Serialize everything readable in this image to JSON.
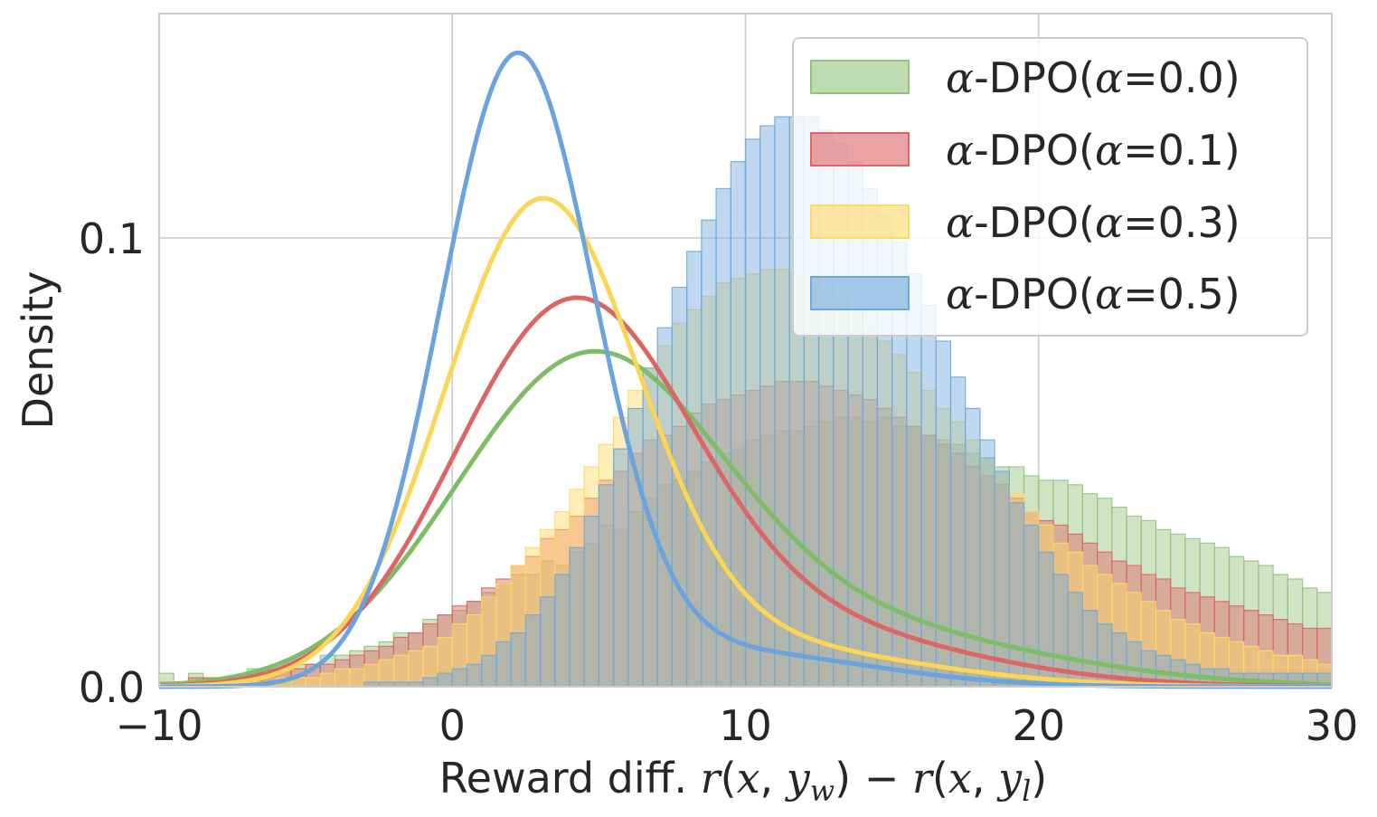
{
  "chart_data": {
    "type": "histogram-kde",
    "title": "",
    "xlabel": {
      "prefix": "Reward diff. ",
      "r1": "r",
      "open1": "(",
      "x1": "x",
      "comma1": ", ",
      "y1": "y",
      "sub1": "w",
      "close1": ")",
      "minus": " − ",
      "r2": "r",
      "open2": "(",
      "x2": "x",
      "comma2": ", ",
      "y2": "y",
      "sub2": "l",
      "close2": ")"
    },
    "ylabel": "Density",
    "xlim": [
      -10,
      30
    ],
    "ylim": [
      0,
      0.15
    ],
    "xticks": [
      -10,
      0,
      10,
      20,
      30
    ],
    "xtick_labels": [
      "−10",
      "0",
      "10",
      "20",
      "30"
    ],
    "yticks": [
      0,
      0.1
    ],
    "ytick_labels": [
      "0.0",
      "0.1"
    ],
    "grid": true,
    "legend_position": "upper right",
    "bin_width": 0.5,
    "series": [
      {
        "name": {
          "alpha": "α",
          "dpo": "-DPO(",
          "alpha2": "α",
          "eq": "=0.0)"
        },
        "bar_color": "#93c47d",
        "line_color": "#7dbd68",
        "kde": {
          "weights": [
            0.75,
            0.25
          ],
          "means": [
            4.5,
            12.0
          ],
          "sds": [
            4.5,
            7.0
          ]
        },
        "hist_y": [
          0.003,
          0.001,
          0.003,
          0.002,
          0.002,
          0.002,
          0.004,
          0.003,
          0.004,
          0.005,
          0.005,
          0.007,
          0.007,
          0.008,
          0.009,
          0.01,
          0.012,
          0.012,
          0.015,
          0.016,
          0.017,
          0.019,
          0.021,
          0.023,
          0.025,
          0.025,
          0.028,
          0.027,
          0.03,
          0.032,
          0.036,
          0.035,
          0.039,
          0.042,
          0.045,
          0.046,
          0.048,
          0.05,
          0.052,
          0.053,
          0.055,
          0.056,
          0.057,
          0.057,
          0.058,
          0.059,
          0.06,
          0.06,
          0.059,
          0.06,
          0.058,
          0.058,
          0.056,
          0.055,
          0.054,
          0.052,
          0.051,
          0.049,
          0.049,
          0.047,
          0.046,
          0.046,
          0.045,
          0.043,
          0.042,
          0.04,
          0.038,
          0.037,
          0.035,
          0.034,
          0.033,
          0.032,
          0.031,
          0.029,
          0.028,
          0.027,
          0.025,
          0.024,
          0.022,
          0.021,
          0.02,
          0.019,
          0.018,
          0.017,
          0.016,
          0.015,
          0.014,
          0.013,
          0.013,
          0.012,
          0.011,
          0.011,
          0.01,
          0.009,
          0.009,
          0.009,
          0.008,
          0.007,
          0.007,
          0.007,
          0.006,
          0.006,
          0.006,
          0.005,
          0.005,
          0.004,
          0.004,
          0.004,
          0.004,
          0.004,
          0.003,
          0.003,
          0.003,
          0.002,
          0.002,
          0.002,
          0.002,
          0.002,
          0.002,
          0.001,
          0.001,
          0.001,
          0.001,
          0.001,
          0.001,
          0.001,
          0.001,
          0.001,
          0.001,
          0.001,
          0.001,
          0.001,
          0.001,
          0.001,
          0.001,
          0.001,
          0.001,
          0.001,
          0.001,
          0.001,
          0.0,
          0.0,
          0.0,
          0.0,
          0.0,
          0.0,
          0.0,
          0.0,
          0.0,
          0.0,
          0.0,
          0.0,
          0.0,
          0.0,
          0.0,
          0.0,
          0.0,
          0.0,
          0.0,
          0.0,
          0.0,
          0.0,
          0.0,
          0.0,
          0.0,
          0.0,
          0.0,
          0.0,
          0.0,
          0.0,
          0.0,
          0.0,
          0.0,
          0.0,
          0.0,
          0.0,
          0.0,
          0.0,
          0.0,
          0.0,
          0.0,
          0.0,
          0.0,
          0.0,
          0.0,
          0.0,
          0.0,
          0.0,
          0.0,
          0.0,
          0.0,
          0.0,
          0.0,
          0.0,
          0.0,
          0.0,
          0.0,
          0.0,
          0.0,
          0.0,
          0.0,
          0.0,
          0.0,
          0.0,
          0.0,
          0.0,
          0.0,
          0.0,
          0.0,
          0.0,
          0.0,
          0.0,
          0.0,
          0.0,
          0.0,
          0.0,
          0.0,
          0.0,
          0.0,
          0.0
        ]
      },
      {
        "name": {
          "alpha": "α",
          "dpo": "-DPO(",
          "alpha2": "α",
          "eq": "=0.1)"
        },
        "bar_color": "#e06666",
        "line_color": "#dc6565",
        "kde": {
          "weights": [
            0.8,
            0.2
          ],
          "means": [
            4.0,
            11.0
          ],
          "sds": [
            4.0,
            6.0
          ]
        },
        "hist_y": [
          0.001,
          0.0,
          0.002,
          0.002,
          0.002,
          0.002,
          0.003,
          0.003,
          0.004,
          0.004,
          0.005,
          0.005,
          0.006,
          0.007,
          0.008,
          0.009,
          0.011,
          0.012,
          0.014,
          0.016,
          0.018,
          0.019,
          0.022,
          0.024,
          0.027,
          0.029,
          0.033,
          0.035,
          0.038,
          0.042,
          0.046,
          0.048,
          0.052,
          0.055,
          0.056,
          0.058,
          0.061,
          0.063,
          0.064,
          0.065,
          0.066,
          0.067,
          0.068,
          0.068,
          0.068,
          0.067,
          0.066,
          0.065,
          0.064,
          0.062,
          0.06,
          0.058,
          0.056,
          0.054,
          0.052,
          0.049,
          0.047,
          0.045,
          0.042,
          0.039,
          0.037,
          0.036,
          0.034,
          0.032,
          0.03,
          0.028,
          0.027,
          0.025,
          0.024,
          0.022,
          0.021,
          0.02,
          0.019,
          0.018,
          0.017,
          0.016,
          0.015,
          0.014,
          0.013,
          0.013,
          0.012,
          0.011,
          0.011,
          0.01,
          0.01,
          0.009,
          0.009,
          0.008,
          0.008,
          0.007,
          0.007,
          0.006,
          0.006,
          0.006,
          0.005,
          0.005,
          0.004,
          0.004,
          0.004,
          0.003,
          0.003,
          0.003,
          0.003,
          0.002,
          0.002,
          0.002,
          0.002,
          0.002,
          0.002,
          0.001,
          0.001,
          0.001,
          0.001,
          0.001,
          0.001,
          0.001,
          0.001,
          0.001,
          0.001,
          0.001,
          0.0,
          0.0,
          0.0,
          0.0,
          0.0,
          0.0,
          0.0,
          0.0,
          0.0,
          0.0,
          0.0,
          0.0,
          0.0,
          0.0,
          0.0,
          0.0,
          0.0,
          0.0,
          0.0,
          0.0,
          0.0,
          0.0,
          0.0,
          0.0,
          0.0,
          0.0,
          0.0,
          0.0,
          0.0,
          0.0,
          0.0,
          0.0,
          0.0,
          0.0,
          0.0,
          0.0,
          0.0,
          0.0,
          0.0,
          0.0,
          0.0,
          0.0,
          0.0,
          0.0,
          0.0,
          0.0,
          0.0,
          0.0,
          0.0,
          0.0,
          0.0,
          0.0,
          0.0,
          0.0,
          0.0,
          0.0,
          0.0,
          0.0,
          0.0,
          0.0,
          0.0,
          0.0,
          0.0,
          0.0,
          0.0,
          0.0,
          0.0,
          0.0,
          0.0,
          0.0,
          0.0,
          0.0,
          0.0,
          0.0,
          0.0,
          0.0,
          0.0,
          0.0,
          0.0,
          0.0,
          0.0,
          0.0,
          0.0,
          0.0,
          0.0,
          0.0,
          0.0,
          0.0,
          0.0,
          0.0,
          0.0,
          0.0,
          0.0,
          0.0,
          0.0,
          0.0,
          0.0,
          0.0,
          0.0,
          0.0,
          0.0
        ]
      },
      {
        "name": {
          "alpha": "α",
          "dpo": "-DPO(",
          "alpha2": "α",
          "eq": "=0.3)"
        },
        "bar_color": "#ffd966",
        "line_color": "#fcd555",
        "kde": {
          "weights": [
            0.85,
            0.15
          ],
          "means": [
            3.0,
            9.0
          ],
          "sds": [
            3.3,
            6.0
          ]
        },
        "hist_y": [
          0.0,
          0.0,
          0.0,
          0.001,
          0.001,
          0.001,
          0.001,
          0.001,
          0.002,
          0.002,
          0.002,
          0.003,
          0.004,
          0.004,
          0.005,
          0.006,
          0.007,
          0.008,
          0.009,
          0.011,
          0.014,
          0.016,
          0.02,
          0.023,
          0.027,
          0.031,
          0.035,
          0.039,
          0.044,
          0.049,
          0.054,
          0.06,
          0.066,
          0.071,
          0.076,
          0.081,
          0.084,
          0.087,
          0.09,
          0.091,
          0.092,
          0.093,
          0.093,
          0.092,
          0.091,
          0.089,
          0.087,
          0.084,
          0.08,
          0.077,
          0.074,
          0.07,
          0.066,
          0.062,
          0.059,
          0.055,
          0.05,
          0.047,
          0.043,
          0.039,
          0.036,
          0.032,
          0.03,
          0.027,
          0.025,
          0.023,
          0.021,
          0.019,
          0.017,
          0.015,
          0.014,
          0.012,
          0.011,
          0.01,
          0.009,
          0.008,
          0.007,
          0.007,
          0.006,
          0.005,
          0.005,
          0.004,
          0.004,
          0.004,
          0.003,
          0.003,
          0.003,
          0.002,
          0.002,
          0.002,
          0.002,
          0.002,
          0.002,
          0.001,
          0.001,
          0.001,
          0.001,
          0.001,
          0.001,
          0.001,
          0.001,
          0.001,
          0.001,
          0.001,
          0.001,
          0.0,
          0.0,
          0.0,
          0.0,
          0.0,
          0.0,
          0.0,
          0.0,
          0.0,
          0.0,
          0.0,
          0.0,
          0.0,
          0.0,
          0.0,
          0.0,
          0.0,
          0.0,
          0.0,
          0.0,
          0.0,
          0.0,
          0.0,
          0.0,
          0.0,
          0.0,
          0.0,
          0.0,
          0.0,
          0.0,
          0.0,
          0.0,
          0.0,
          0.0,
          0.0,
          0.0,
          0.0,
          0.0,
          0.0,
          0.0,
          0.0,
          0.0,
          0.0,
          0.0,
          0.0,
          0.0,
          0.0,
          0.0,
          0.0,
          0.0,
          0.0,
          0.0,
          0.0,
          0.0,
          0.0,
          0.0,
          0.0,
          0.0,
          0.0,
          0.0,
          0.0,
          0.0,
          0.0,
          0.0,
          0.0,
          0.0,
          0.0,
          0.0,
          0.0,
          0.0,
          0.0,
          0.0,
          0.0,
          0.0,
          0.0,
          0.0,
          0.0,
          0.0,
          0.0,
          0.0,
          0.0,
          0.0,
          0.0,
          0.0,
          0.0,
          0.0,
          0.0,
          0.0,
          0.0,
          0.0,
          0.0,
          0.0,
          0.0,
          0.0,
          0.0,
          0.0,
          0.0,
          0.0,
          0.0,
          0.0,
          0.0,
          0.0,
          0.0,
          0.0,
          0.0,
          0.0,
          0.0,
          0.0,
          0.0,
          0.0,
          0.0,
          0.0,
          0.0,
          0.0,
          0.0,
          0.0,
          0.0,
          0.0,
          0.0,
          0.0,
          0.0,
          0.0,
          0.0
        ]
      },
      {
        "name": {
          "alpha": "α",
          "dpo": "-DPO(",
          "alpha2": "α",
          "eq": "=0.5)"
        },
        "bar_color": "#6fa8dc",
        "line_color": "#6aa3dd",
        "kde": {
          "weights": [
            0.9,
            0.1
          ],
          "means": [
            2.2,
            9.0
          ],
          "sds": [
            2.6,
            5.0
          ]
        },
        "hist_y": [
          0.0,
          0.0,
          0.0,
          0.0,
          0.0,
          0.0,
          0.0,
          0.0,
          0.0,
          0.0,
          0.0,
          0.0,
          0.0,
          0.0,
          0.001,
          0.001,
          0.001,
          0.001,
          0.002,
          0.003,
          0.004,
          0.005,
          0.007,
          0.01,
          0.012,
          0.016,
          0.02,
          0.025,
          0.031,
          0.038,
          0.045,
          0.053,
          0.062,
          0.071,
          0.08,
          0.089,
          0.097,
          0.104,
          0.111,
          0.117,
          0.122,
          0.125,
          0.127,
          0.127,
          0.127,
          0.124,
          0.121,
          0.117,
          0.111,
          0.105,
          0.099,
          0.092,
          0.085,
          0.077,
          0.069,
          0.062,
          0.055,
          0.048,
          0.041,
          0.036,
          0.03,
          0.025,
          0.021,
          0.017,
          0.014,
          0.012,
          0.01,
          0.008,
          0.007,
          0.006,
          0.005,
          0.004,
          0.004,
          0.003,
          0.003,
          0.003,
          0.003,
          0.003,
          0.003,
          0.003,
          0.002,
          0.002,
          0.002,
          0.002,
          0.002,
          0.002,
          0.002,
          0.002,
          0.002,
          0.001,
          0.001,
          0.001,
          0.001,
          0.001,
          0.001,
          0.001,
          0.001,
          0.001,
          0.001,
          0.001,
          0.0,
          0.0,
          0.0,
          0.0,
          0.0,
          0.0,
          0.0,
          0.0,
          0.0,
          0.0,
          0.0,
          0.0,
          0.0,
          0.0,
          0.0,
          0.0,
          0.0,
          0.0,
          0.0,
          0.0,
          0.0,
          0.0,
          0.0,
          0.0,
          0.0,
          0.0,
          0.0,
          0.0,
          0.0,
          0.0,
          0.0,
          0.0,
          0.0,
          0.0,
          0.0,
          0.0,
          0.0,
          0.0,
          0.0,
          0.0,
          0.0,
          0.0,
          0.0,
          0.0,
          0.0,
          0.0,
          0.0,
          0.0,
          0.0,
          0.0,
          0.0,
          0.0,
          0.0,
          0.0,
          0.0,
          0.0,
          0.0,
          0.0,
          0.0,
          0.0,
          0.0,
          0.0,
          0.0,
          0.0,
          0.0,
          0.0,
          0.0,
          0.0,
          0.0,
          0.0,
          0.0,
          0.0,
          0.0,
          0.0,
          0.0,
          0.0,
          0.0,
          0.0,
          0.0,
          0.0,
          0.0,
          0.0,
          0.0,
          0.0,
          0.0,
          0.0,
          0.0,
          0.0,
          0.0,
          0.0,
          0.0,
          0.0,
          0.0,
          0.0,
          0.0,
          0.0,
          0.0,
          0.0,
          0.0,
          0.0,
          0.0,
          0.0,
          0.0,
          0.0,
          0.0,
          0.0,
          0.0,
          0.0,
          0.0,
          0.0,
          0.0,
          0.0,
          0.0,
          0.0,
          0.0,
          0.0,
          0.0,
          0.0,
          0.0,
          0.0,
          0.0,
          0.0,
          0.0,
          0.0,
          0.0,
          0.0,
          0.0,
          0.0,
          0.0,
          0.0
        ]
      }
    ]
  }
}
